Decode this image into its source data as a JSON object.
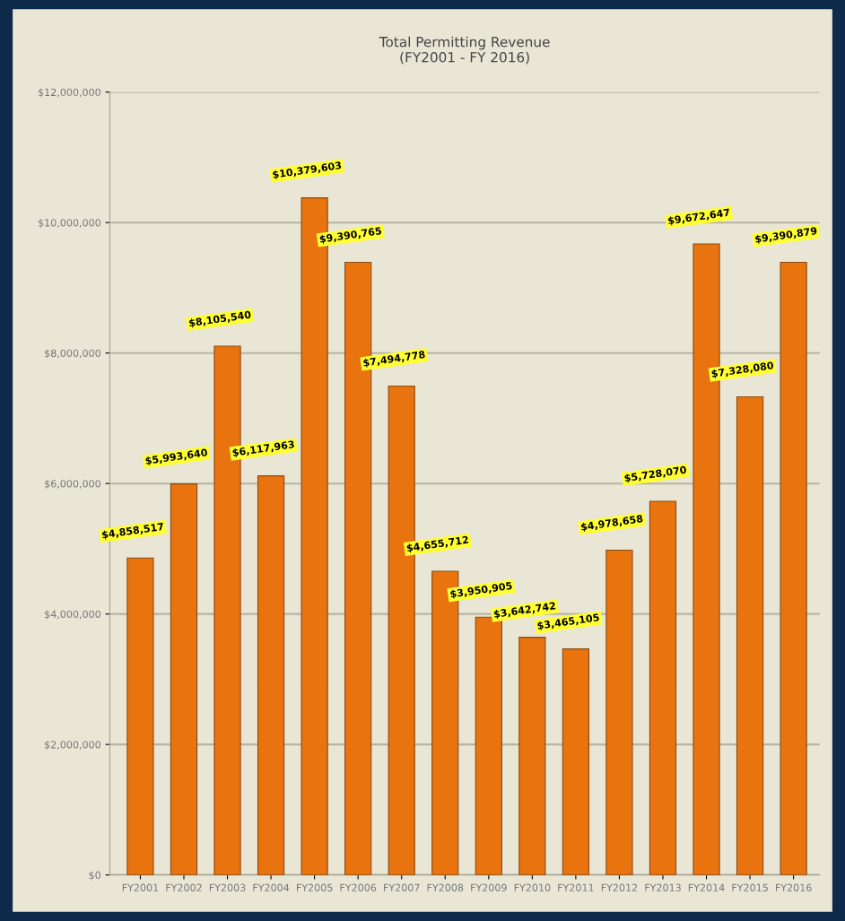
{
  "chart_data": {
    "type": "bar",
    "title": "Total Permitting Revenue\n(FY2001 - FY 2016)",
    "categories": [
      "FY2001",
      "FY2002",
      "FY2003",
      "FY2004",
      "FY2005",
      "FY2006",
      "FY2007",
      "FY2008",
      "FY2009",
      "FY2010",
      "FY2011",
      "FY2012",
      "FY2013",
      "FY2014",
      "FY2015",
      "FY2016"
    ],
    "values": [
      4858517,
      5993640,
      8105540,
      6117963,
      10379603,
      9390765,
      7494778,
      4655712,
      3950905,
      3642742,
      3465105,
      4978658,
      5728070,
      9672647,
      7328080,
      9390879
    ],
    "value_labels": [
      "$4,858,517",
      "$5,993,640",
      "$8,105,540",
      "$6,117,963",
      "$10,379,603",
      "$9,390,765",
      "$7,494,778",
      "$4,655,712",
      "$3,950,905",
      "$3,642,742",
      "$3,465,105",
      "$4,978,658",
      "$5,728,070",
      "$9,672,647",
      "$7,328,080",
      "$9,390,879"
    ],
    "color": "#e8730f",
    "ylim": [
      0,
      12000000
    ],
    "yticks": [
      {
        "value": 0,
        "label": "$0"
      },
      {
        "value": 2000000,
        "label": "$2,000,000"
      },
      {
        "value": 4000000,
        "label": "$4,000,000"
      },
      {
        "value": 6000000,
        "label": "$6,000,000"
      },
      {
        "value": 8000000,
        "label": "$8,000,000"
      },
      {
        "value": 10000000,
        "label": "$10,000,000"
      },
      {
        "value": 12000000,
        "label": "$12,000,000"
      }
    ],
    "grid": "y"
  }
}
